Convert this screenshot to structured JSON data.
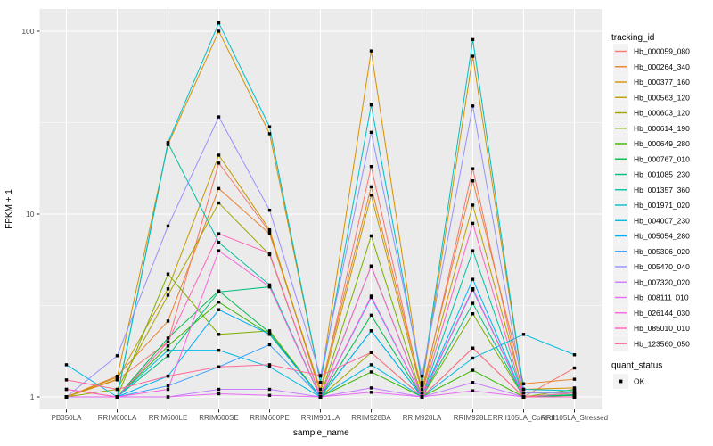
{
  "figure": {
    "background": "#FFFFFF",
    "panel_fill": "#EBEBEB",
    "grid_color": "#FFFFFF",
    "tick_color": "#333333",
    "axis_text_color": "#4D4D4D",
    "title_text_color": "#000000",
    "legend_key_fill": "#F2F2F2",
    "point_color": "#000000"
  },
  "axes": {
    "x_title": "sample_name",
    "y_title": "FPKM + 1",
    "y_tick_labels": [
      "1",
      "10",
      "100"
    ],
    "y_tick_values": [
      1,
      10,
      100
    ],
    "y_minor_values": [
      3.16227766,
      31.6227766
    ]
  },
  "legend": {
    "color_title": "tracking_id",
    "shape_title": "quant_status",
    "shape_label": "OK"
  },
  "chart_data": {
    "type": "line",
    "title": "",
    "xlabel": "sample_name",
    "ylabel": "FPKM + 1",
    "y_scale": "log10",
    "ylim": [
      0.85,
      135
    ],
    "grid": true,
    "legend_position": "right",
    "point_marker": "filled-black-square",
    "categories": [
      "PB350LA",
      "RRIM600LA",
      "RRIM600LE",
      "RRIM600SE",
      "RRIM600PE",
      "RRIM901LA",
      "RRIM928BA",
      "RRIM928LA",
      "RRIM928LE",
      "RRII105LA_Control",
      "RRII105LA_Stressed"
    ],
    "series": [
      {
        "name": "Hb_000059_080",
        "color": "#F8766D",
        "values": [
          1.0,
          1.24,
          2.0,
          19.0,
          8.0,
          1.05,
          18.2,
          1.05,
          17.7,
          1.0,
          1.44
        ]
      },
      {
        "name": "Hb_000264_340",
        "color": "#E8832F",
        "values": [
          1.0,
          1.3,
          2.6,
          13.8,
          7.8,
          1.1,
          14.1,
          1.1,
          15.2,
          1.18,
          1.25
        ]
      },
      {
        "name": "Hb_000377_160",
        "color": "#D89000",
        "values": [
          1.0,
          1.28,
          24.0,
          100.0,
          27.5,
          1.2,
          78.0,
          1.15,
          73.0,
          1.1,
          1.12
        ]
      },
      {
        "name": "Hb_000563_120",
        "color": "#C09B00",
        "values": [
          1.0,
          1.25,
          3.9,
          21.0,
          8.2,
          1.05,
          12.7,
          1.05,
          11.2,
          1.05,
          1.06
        ]
      },
      {
        "name": "Hb_000603_120",
        "color": "#A3A500",
        "values": [
          1.0,
          1.1,
          3.6,
          11.5,
          6.0,
          1.0,
          1.75,
          1.0,
          1.85,
          1.0,
          1.02
        ]
      },
      {
        "name": "Hb_000614_190",
        "color": "#7CAE00",
        "values": [
          1.0,
          1.0,
          4.7,
          2.2,
          2.3,
          1.0,
          7.6,
          1.0,
          2.85,
          1.0,
          1.1
        ]
      },
      {
        "name": "Hb_000649_280",
        "color": "#39B600",
        "values": [
          1.0,
          1.0,
          1.9,
          3.3,
          2.2,
          1.0,
          1.37,
          1.0,
          1.4,
          1.0,
          1.05
        ]
      },
      {
        "name": "Hb_000767_010",
        "color": "#00BB4E",
        "values": [
          1.0,
          1.0,
          2.1,
          3.8,
          2.25,
          1.0,
          2.8,
          1.0,
          3.9,
          1.0,
          1.02
        ]
      },
      {
        "name": "Hb_001085_230",
        "color": "#00BF7D",
        "values": [
          1.0,
          1.0,
          1.68,
          3.75,
          4.0,
          1.0,
          2.3,
          1.0,
          3.25,
          1.0,
          1.03
        ]
      },
      {
        "name": "Hb_001357_360",
        "color": "#00C1A3",
        "values": [
          1.0,
          1.0,
          24.5,
          7.0,
          4.1,
          1.0,
          5.2,
          1.0,
          6.3,
          1.0,
          1.0
        ]
      },
      {
        "name": "Hb_001971_020",
        "color": "#00BFC4",
        "values": [
          1.0,
          1.0,
          24.6,
          111.0,
          30.0,
          1.2,
          39.5,
          1.2,
          90.0,
          1.1,
          1.08
        ]
      },
      {
        "name": "Hb_004007_230",
        "color": "#00BAE0",
        "values": [
          1.5,
          1.0,
          1.8,
          1.8,
          1.46,
          1.0,
          1.5,
          1.0,
          1.63,
          2.2,
          1.7
        ]
      },
      {
        "name": "Hb_005054_280",
        "color": "#00B0F6",
        "values": [
          1.0,
          1.0,
          1.3,
          3.0,
          2.2,
          1.0,
          2.3,
          1.0,
          4.4,
          1.0,
          1.0
        ]
      },
      {
        "name": "Hb_005306_020",
        "color": "#35A2FF",
        "values": [
          1.0,
          1.0,
          1.15,
          1.46,
          1.93,
          1.0,
          3.5,
          1.0,
          3.85,
          1.0,
          1.0
        ]
      },
      {
        "name": "Hb_005470_040",
        "color": "#9590FF",
        "values": [
          1.0,
          1.68,
          8.6,
          34.0,
          10.5,
          1.3,
          28.0,
          1.3,
          39.0,
          1.05,
          1.05
        ]
      },
      {
        "name": "Hb_007320_020",
        "color": "#C77CFF",
        "values": [
          1.0,
          1.0,
          1.0,
          1.1,
          1.1,
          1.0,
          1.12,
          1.0,
          1.2,
          1.0,
          1.0
        ]
      },
      {
        "name": "Hb_008111_010",
        "color": "#E76BF3",
        "values": [
          1.0,
          1.0,
          1.0,
          1.04,
          1.02,
          1.0,
          1.06,
          1.0,
          1.08,
          1.0,
          1.0
        ]
      },
      {
        "name": "Hb_026144_030",
        "color": "#FA62DB",
        "values": [
          1.1,
          1.0,
          1.1,
          6.3,
          4.0,
          1.0,
          3.56,
          1.0,
          3.9,
          1.0,
          1.0
        ]
      },
      {
        "name": "Hb_085010_010",
        "color": "#FF62BC",
        "values": [
          1.1,
          1.0,
          2.0,
          7.8,
          6.1,
          1.0,
          5.2,
          1.0,
          8.9,
          1.0,
          1.0
        ]
      },
      {
        "name": "Hb_123560_050",
        "color": "#FF6A98",
        "values": [
          1.24,
          1.1,
          1.3,
          1.46,
          1.5,
          1.31,
          1.75,
          1.0,
          1.85,
          1.0,
          1.05
        ]
      }
    ]
  }
}
